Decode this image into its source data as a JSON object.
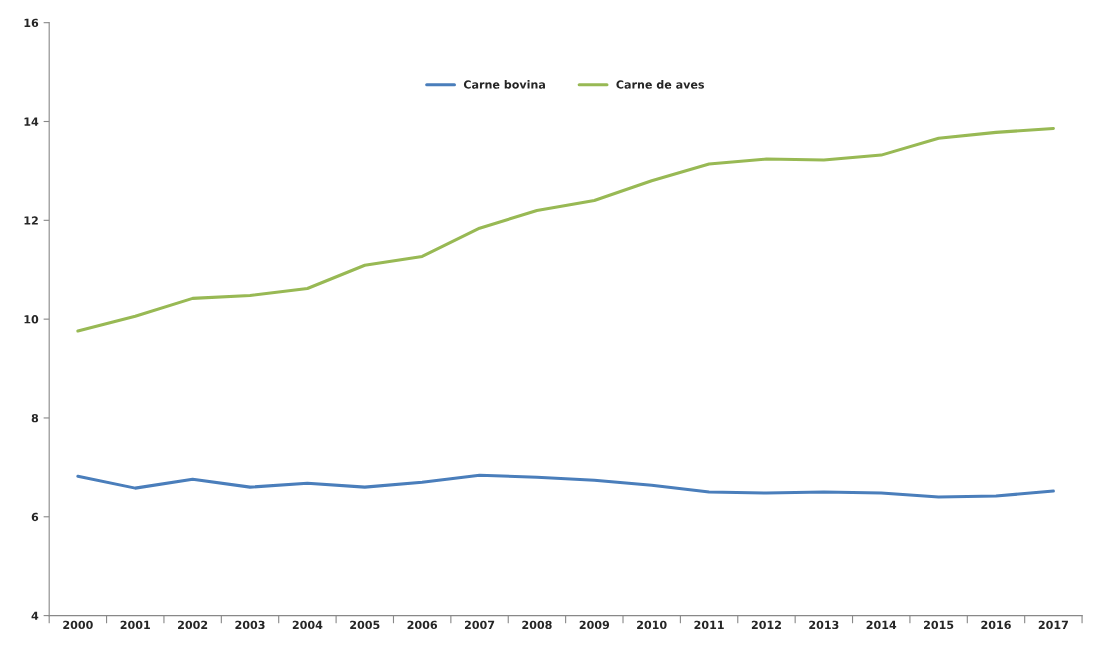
{
  "chart_data": {
    "type": "line",
    "categories": [
      "2000",
      "2001",
      "2002",
      "2003",
      "2004",
      "2005",
      "2006",
      "2007",
      "2008",
      "2009",
      "2010",
      "2011",
      "2012",
      "2013",
      "2014",
      "2015",
      "2016",
      "2017"
    ],
    "series": [
      {
        "name": "Carne bovina",
        "color": "#4a7ebb",
        "values": [
          6.82,
          6.58,
          6.76,
          6.6,
          6.68,
          6.6,
          6.7,
          6.84,
          6.8,
          6.74,
          6.64,
          6.5,
          6.48,
          6.5,
          6.48,
          6.4,
          6.42,
          6.52
        ]
      },
      {
        "name": "Carne de aves",
        "color": "#98b954",
        "values": [
          9.76,
          10.06,
          10.42,
          10.48,
          10.62,
          11.09,
          11.27,
          11.84,
          12.2,
          12.4,
          12.8,
          13.14,
          13.24,
          13.22,
          13.32,
          13.66,
          13.78,
          13.86
        ]
      }
    ],
    "ylim": [
      4,
      16
    ],
    "yticks": [
      4,
      6,
      8,
      10,
      12,
      14,
      16
    ],
    "grid": false,
    "legend": "top",
    "marker": "none",
    "line_style": "solid"
  }
}
